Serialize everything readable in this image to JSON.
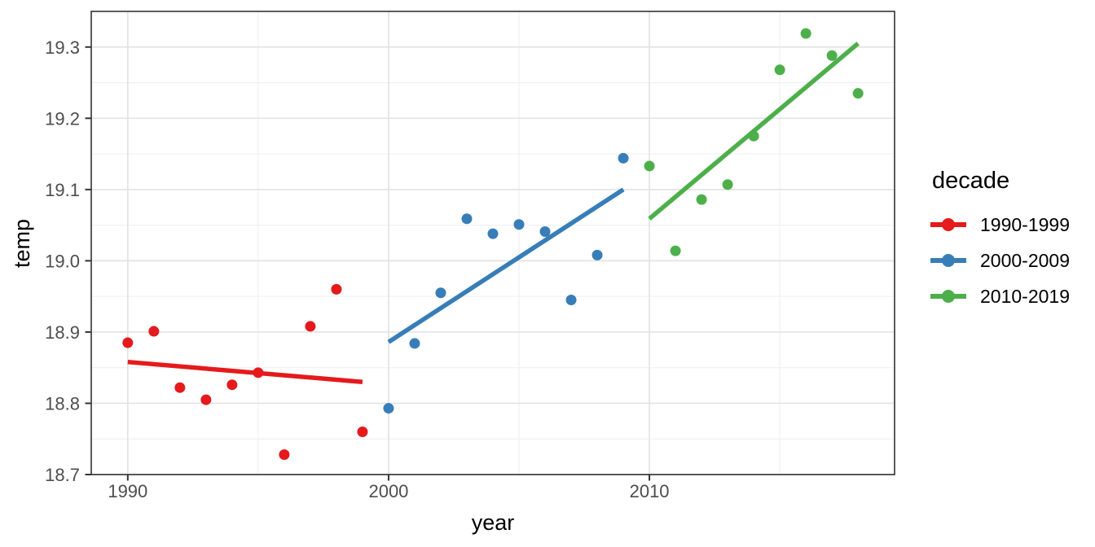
{
  "chart_data": {
    "type": "scatter",
    "title": "",
    "xlabel": "year",
    "ylabel": "temp",
    "xlim": [
      1988.6,
      2019.4
    ],
    "ylim": [
      18.7,
      19.35
    ],
    "grid": true,
    "x_ticks": [
      {
        "value": 1990,
        "label": "1990"
      },
      {
        "value": 2000,
        "label": "2000"
      },
      {
        "value": 2010,
        "label": "2010"
      }
    ],
    "y_ticks": [
      {
        "value": 18.7,
        "label": "18.7"
      },
      {
        "value": 18.8,
        "label": "18.8"
      },
      {
        "value": 18.9,
        "label": "18.9"
      },
      {
        "value": 19.0,
        "label": "19.0"
      },
      {
        "value": 19.1,
        "label": "19.1"
      },
      {
        "value": 19.2,
        "label": "19.2"
      },
      {
        "value": 19.3,
        "label": "19.3"
      }
    ],
    "x_minor_gridlines": [
      1995,
      2005,
      2015
    ],
    "y_minor_gridlines": [
      18.75,
      18.85,
      18.95,
      19.05,
      19.15,
      19.25
    ],
    "legend": {
      "title": "decade",
      "position": "right"
    },
    "series": [
      {
        "name": "1990-1999",
        "color": "#E41A1C",
        "x": [
          1990,
          1991,
          1992,
          1993,
          1994,
          1995,
          1996,
          1997,
          1998,
          1999
        ],
        "y": [
          18.885,
          18.901,
          18.822,
          18.805,
          18.826,
          18.843,
          18.728,
          18.908,
          18.96,
          18.76
        ],
        "trend": {
          "x": [
            1990,
            1999
          ],
          "y": [
            18.858,
            18.83
          ]
        }
      },
      {
        "name": "2000-2009",
        "color": "#377EB8",
        "x": [
          2000,
          2001,
          2002,
          2003,
          2004,
          2005,
          2006,
          2007,
          2008,
          2009
        ],
        "y": [
          18.793,
          18.884,
          18.955,
          19.059,
          19.038,
          19.051,
          19.041,
          18.945,
          19.008,
          19.144
        ],
        "trend": {
          "x": [
            2000,
            2009
          ],
          "y": [
            18.886,
            19.1
          ]
        }
      },
      {
        "name": "2010-2019",
        "color": "#4DAF4A",
        "x": [
          2010,
          2011,
          2012,
          2013,
          2014,
          2015,
          2016,
          2017,
          2018
        ],
        "y": [
          19.133,
          19.014,
          19.086,
          19.107,
          19.175,
          19.268,
          19.319,
          19.288,
          19.235
        ],
        "trend": {
          "x": [
            2010,
            2018
          ],
          "y": [
            19.059,
            19.305
          ]
        }
      }
    ]
  },
  "style_colors": {
    "background": "#FFFFFF",
    "panel_border": "#333333",
    "tick_mark": "#333333",
    "tick_label": "#4D4D4D",
    "axis_title": "#000000",
    "grid_major": "#E3E3E3",
    "grid_minor": "#F0F0F0"
  }
}
